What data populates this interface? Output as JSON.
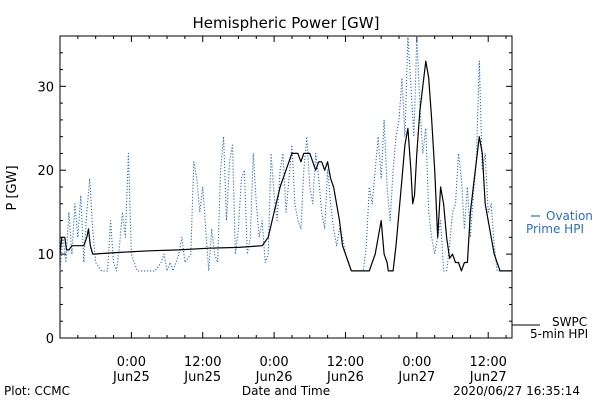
{
  "chart_data": {
    "type": "line",
    "title": "Hemispheric Power [GW]",
    "xlabel": "Date and Time",
    "ylabel": "P [GW]",
    "x_unit": "hours since 2020-06-24 12:00",
    "xlim": [
      0,
      76
    ],
    "ylim": [
      0,
      36
    ],
    "y_ticks": [
      0,
      10,
      20,
      30
    ],
    "x_ticks": [
      {
        "x": 12,
        "time": "0:00",
        "date": "Jun25"
      },
      {
        "x": 24,
        "time": "12:00",
        "date": "Jun25"
      },
      {
        "x": 36,
        "time": "0:00",
        "date": "Jun26"
      },
      {
        "x": 48,
        "time": "12:00",
        "date": "Jun26"
      },
      {
        "x": 60,
        "time": "0:00",
        "date": "Jun27"
      },
      {
        "x": 72,
        "time": "12:00",
        "date": "Jun27"
      }
    ],
    "series": [
      {
        "name": "SWPC 5-min HPI",
        "color": "#000000",
        "style": "solid",
        "points": [
          [
            0,
            10
          ],
          [
            0.3,
            12
          ],
          [
            0.8,
            12
          ],
          [
            1.1,
            10.5
          ],
          [
            1.5,
            10.5
          ],
          [
            2,
            11
          ],
          [
            3,
            11
          ],
          [
            4,
            11
          ],
          [
            4.5,
            12
          ],
          [
            4.8,
            13
          ],
          [
            5.1,
            11
          ],
          [
            5.5,
            10
          ],
          [
            10,
            10.2
          ],
          [
            15,
            10.4
          ],
          [
            20,
            10.5
          ],
          [
            25,
            10.7
          ],
          [
            30,
            10.8
          ],
          [
            34,
            11
          ],
          [
            35,
            12
          ],
          [
            36,
            15
          ],
          [
            37,
            18
          ],
          [
            38,
            20
          ],
          [
            39,
            22
          ],
          [
            40,
            22
          ],
          [
            40.5,
            21
          ],
          [
            41,
            22
          ],
          [
            42,
            22
          ],
          [
            43,
            20
          ],
          [
            43.5,
            21
          ],
          [
            44,
            21
          ],
          [
            44.5,
            20
          ],
          [
            45,
            21
          ],
          [
            45.5,
            19
          ],
          [
            46,
            18
          ],
          [
            47,
            14
          ],
          [
            47.5,
            11
          ],
          [
            48,
            10
          ],
          [
            48.5,
            9
          ],
          [
            49,
            8
          ],
          [
            51,
            8
          ],
          [
            52,
            8
          ],
          [
            52.5,
            9
          ],
          [
            53,
            10
          ],
          [
            53.5,
            12
          ],
          [
            54,
            14
          ],
          [
            54.5,
            10
          ],
          [
            55,
            9
          ],
          [
            55.2,
            8
          ],
          [
            56,
            8
          ],
          [
            56.5,
            11
          ],
          [
            57,
            15
          ],
          [
            57.5,
            19
          ],
          [
            58,
            23
          ],
          [
            58.5,
            25
          ],
          [
            59,
            20
          ],
          [
            59.3,
            16
          ],
          [
            59.6,
            17
          ],
          [
            60,
            22
          ],
          [
            60.5,
            27
          ],
          [
            61,
            30
          ],
          [
            61.5,
            33
          ],
          [
            62,
            31
          ],
          [
            62.5,
            26
          ],
          [
            63,
            20
          ],
          [
            63.5,
            12
          ],
          [
            64,
            18
          ],
          [
            64.5,
            16
          ],
          [
            65,
            12
          ],
          [
            65.5,
            9.5
          ],
          [
            66,
            10
          ],
          [
            66.5,
            9
          ],
          [
            67,
            9
          ],
          [
            67.5,
            8
          ],
          [
            68,
            9
          ],
          [
            68.5,
            9
          ],
          [
            69,
            15
          ],
          [
            69.5,
            18
          ],
          [
            70,
            21
          ],
          [
            70.5,
            24
          ],
          [
            71,
            22
          ],
          [
            71.5,
            16
          ],
          [
            72,
            14
          ],
          [
            72.5,
            12
          ],
          [
            73,
            10
          ],
          [
            73.5,
            9
          ],
          [
            74,
            8
          ],
          [
            76,
            8
          ]
        ]
      },
      {
        "name": "Ovation Prime HPI",
        "color": "#2a6fc9",
        "style": "dotted",
        "points": [
          [
            0,
            8
          ],
          [
            0.5,
            12
          ],
          [
            1,
            9
          ],
          [
            1.5,
            15
          ],
          [
            2,
            10
          ],
          [
            2.5,
            16
          ],
          [
            3,
            12
          ],
          [
            3.5,
            17
          ],
          [
            4,
            9
          ],
          [
            4.5,
            15
          ],
          [
            5,
            19
          ],
          [
            5.5,
            13
          ],
          [
            6,
            9
          ],
          [
            7,
            8
          ],
          [
            8,
            8
          ],
          [
            8.5,
            14
          ],
          [
            9,
            9
          ],
          [
            9.5,
            8
          ],
          [
            10,
            11
          ],
          [
            10.5,
            15
          ],
          [
            11,
            12
          ],
          [
            11.5,
            22
          ],
          [
            12,
            10
          ],
          [
            13,
            8
          ],
          [
            14,
            8
          ],
          [
            15,
            8
          ],
          [
            16,
            8
          ],
          [
            17,
            9
          ],
          [
            17.5,
            10
          ],
          [
            18,
            8
          ],
          [
            18.5,
            9
          ],
          [
            19,
            8
          ],
          [
            20,
            10
          ],
          [
            20.5,
            12
          ],
          [
            21,
            9
          ],
          [
            22,
            10
          ],
          [
            22.5,
            21
          ],
          [
            23,
            19
          ],
          [
            23.5,
            15
          ],
          [
            24,
            18
          ],
          [
            24.5,
            13
          ],
          [
            25,
            8
          ],
          [
            25.5,
            13
          ],
          [
            26,
            10
          ],
          [
            26.5,
            9
          ],
          [
            27,
            20
          ],
          [
            27.5,
            24
          ],
          [
            28,
            14
          ],
          [
            28.5,
            21
          ],
          [
            29,
            23
          ],
          [
            29.5,
            10
          ],
          [
            30,
            13
          ],
          [
            30.5,
            19
          ],
          [
            31,
            20
          ],
          [
            31.5,
            10
          ],
          [
            32,
            12
          ],
          [
            32.5,
            22
          ],
          [
            33,
            16
          ],
          [
            33.5,
            12
          ],
          [
            34,
            14
          ],
          [
            34.5,
            9
          ],
          [
            35,
            10
          ],
          [
            35.5,
            22
          ],
          [
            36,
            17
          ],
          [
            36.5,
            14
          ],
          [
            37,
            20
          ],
          [
            37.5,
            22
          ],
          [
            38,
            15
          ],
          [
            38.5,
            19
          ],
          [
            39,
            23
          ],
          [
            39.5,
            16
          ],
          [
            40,
            14
          ],
          [
            40.5,
            13
          ],
          [
            41,
            20
          ],
          [
            41.5,
            24
          ],
          [
            42,
            18
          ],
          [
            42.5,
            16
          ],
          [
            43,
            22
          ],
          [
            43.5,
            19
          ],
          [
            44,
            15
          ],
          [
            44.5,
            13
          ],
          [
            45,
            20
          ],
          [
            45.5,
            16
          ],
          [
            46,
            13
          ],
          [
            46.5,
            11
          ],
          [
            47,
            13
          ],
          [
            47.5,
            12
          ],
          [
            48,
            10
          ],
          [
            48.5,
            9
          ],
          [
            49,
            8
          ],
          [
            50,
            8
          ],
          [
            51,
            8
          ],
          [
            51.5,
            11
          ],
          [
            52,
            18
          ],
          [
            52.5,
            16
          ],
          [
            53,
            20
          ],
          [
            53.5,
            24
          ],
          [
            54,
            19
          ],
          [
            54.5,
            26
          ],
          [
            55,
            18
          ],
          [
            55.5,
            14
          ],
          [
            56,
            20
          ],
          [
            56.5,
            24
          ],
          [
            57,
            26
          ],
          [
            57.5,
            31
          ],
          [
            58,
            24
          ],
          [
            58.5,
            36
          ],
          [
            59,
            30
          ],
          [
            59.5,
            24
          ],
          [
            60,
            36
          ],
          [
            60.5,
            28
          ],
          [
            61,
            22
          ],
          [
            61.5,
            25
          ],
          [
            62,
            15
          ],
          [
            62.5,
            12
          ],
          [
            63,
            10
          ],
          [
            63.5,
            12
          ],
          [
            64,
            14
          ],
          [
            64.5,
            8
          ],
          [
            65,
            8
          ],
          [
            65.5,
            11
          ],
          [
            66,
            15
          ],
          [
            66.5,
            16
          ],
          [
            67,
            22
          ],
          [
            67.5,
            19
          ],
          [
            68,
            13
          ],
          [
            68.5,
            18
          ],
          [
            69,
            12
          ],
          [
            69.5,
            17
          ],
          [
            70,
            21
          ],
          [
            70.5,
            33
          ],
          [
            71,
            20
          ],
          [
            71.5,
            22
          ],
          [
            72,
            15
          ],
          [
            72.5,
            16
          ],
          [
            73,
            11
          ],
          [
            73.5,
            8
          ],
          [
            74,
            8
          ],
          [
            76,
            8
          ]
        ]
      }
    ],
    "legend": {
      "placement": "right",
      "ovation_line1": "Ovation",
      "ovation_line2": "Prime HPI",
      "swpc_line1": "SWPC",
      "swpc_line2": "5-min HPI"
    },
    "footer": {
      "left": "Plot: CCMC",
      "right": "2020/06/27 16:35:14"
    }
  }
}
